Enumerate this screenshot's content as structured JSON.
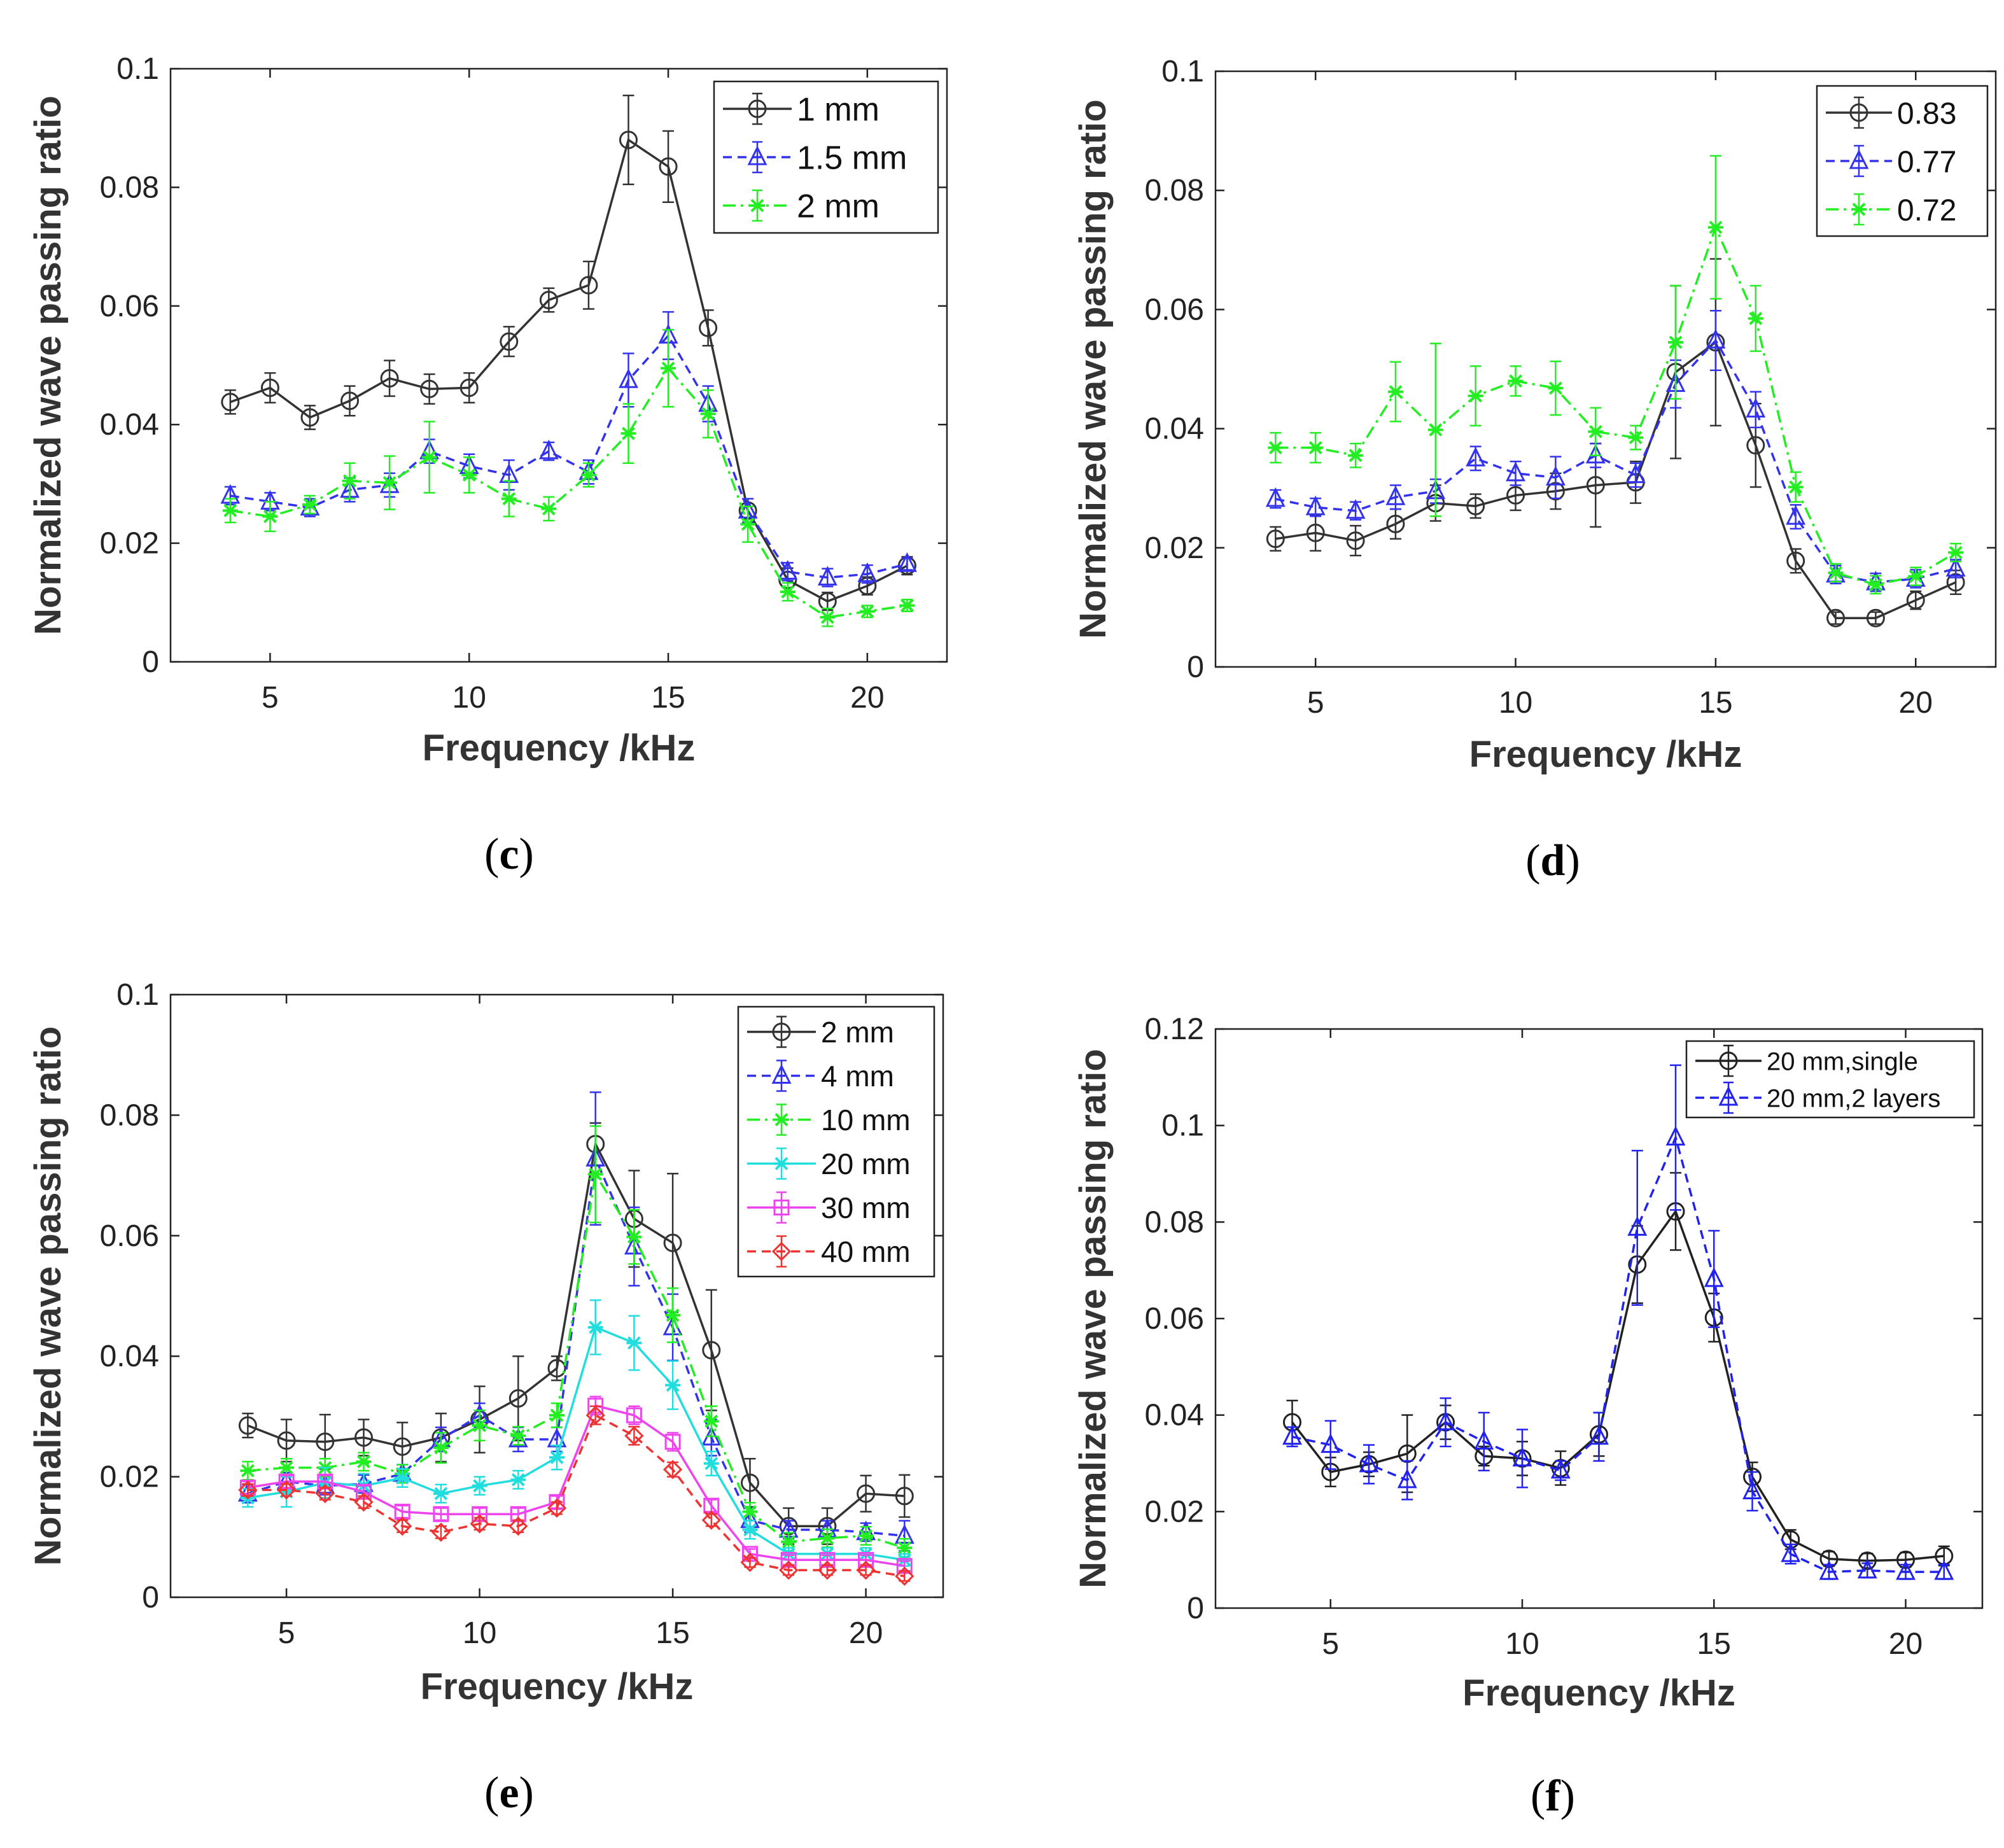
{
  "figure": {
    "panels": [
      {
        "id": "c",
        "caption_open": "(",
        "caption_letter": "c",
        "caption_close": ")"
      },
      {
        "id": "d",
        "caption_open": "(",
        "caption_letter": "d",
        "caption_close": ")"
      },
      {
        "id": "e",
        "caption_open": "(",
        "caption_letter": "e",
        "caption_close": ")"
      },
      {
        "id": "f",
        "caption_open": "(",
        "caption_letter": "f",
        "caption_close": ")"
      }
    ]
  },
  "chart_data": [
    {
      "panel": "c",
      "type": "line",
      "title": "",
      "xlabel": "Frequency /kHz",
      "ylabel": "Normalized wave passing ratio",
      "xlim": [
        2.5,
        22
      ],
      "ylim": [
        0,
        0.1
      ],
      "xticks": [
        5,
        10,
        15,
        20
      ],
      "xtick_labels": [
        "5",
        "10",
        "15",
        "20"
      ],
      "yticks": [
        0,
        0.02,
        0.04,
        0.06,
        0.08,
        0.1
      ],
      "ytick_labels": [
        "0",
        "0.02",
        "0.04",
        "0.06",
        "0.08",
        "0.1"
      ],
      "legend_position": "top-right",
      "x": [
        4,
        5,
        6,
        7,
        8,
        9,
        10,
        11,
        12,
        13,
        14,
        15,
        16,
        17,
        18,
        19,
        20,
        21
      ],
      "series": [
        {
          "name": "1 mm",
          "color": "#333333",
          "marker": "circle",
          "dash": "solid",
          "values": [
            0.0438,
            0.0462,
            0.0412,
            0.044,
            0.0478,
            0.046,
            0.0462,
            0.054,
            0.061,
            0.0635,
            0.088,
            0.0835,
            0.0563,
            0.0255,
            0.0138,
            0.0102,
            0.0128,
            0.0162
          ],
          "errors": [
            0.002,
            0.0025,
            0.002,
            0.0025,
            0.003,
            0.0025,
            0.0025,
            0.0025,
            0.002,
            0.004,
            0.0075,
            0.006,
            0.003,
            0.002,
            0.002,
            0.0015,
            0.0015,
            0.0015
          ]
        },
        {
          "name": "1.5 mm",
          "color": "#3333ee",
          "marker": "triangle",
          "dash": "dashed",
          "values": [
            0.028,
            0.027,
            0.026,
            0.029,
            0.0298,
            0.0355,
            0.033,
            0.0315,
            0.0355,
            0.032,
            0.0475,
            0.055,
            0.0435,
            0.0255,
            0.0152,
            0.0142,
            0.0148,
            0.0165
          ],
          "errors": [
            0.0015,
            0.0015,
            0.0015,
            0.002,
            0.002,
            0.002,
            0.002,
            0.0025,
            0.0015,
            0.002,
            0.0045,
            0.004,
            0.003,
            0.002,
            0.0015,
            0.0015,
            0.0015,
            0.001
          ]
        },
        {
          "name": "2 mm",
          "color": "#22ee22",
          "marker": "star",
          "dash": "dashdot",
          "values": [
            0.0255,
            0.0245,
            0.0265,
            0.0305,
            0.0302,
            0.0345,
            0.0315,
            0.0275,
            0.0258,
            0.0315,
            0.0385,
            0.0495,
            0.0418,
            0.0232,
            0.0118,
            0.0075,
            0.0085,
            0.0095
          ],
          "errors": [
            0.002,
            0.0025,
            0.0015,
            0.003,
            0.0045,
            0.006,
            0.003,
            0.003,
            0.002,
            0.002,
            0.005,
            0.0065,
            0.004,
            0.003,
            0.0015,
            0.0015,
            0.001,
            0.001
          ]
        }
      ]
    },
    {
      "panel": "d",
      "type": "line",
      "title": "",
      "xlabel": "Frequency /kHz",
      "ylabel": "Normalized wave passing ratio",
      "xlim": [
        2.5,
        22
      ],
      "ylim": [
        0,
        0.1
      ],
      "xticks": [
        5,
        10,
        15,
        20
      ],
      "xtick_labels": [
        "5",
        "10",
        "15",
        "20"
      ],
      "yticks": [
        0,
        0.02,
        0.04,
        0.06,
        0.08,
        0.1
      ],
      "ytick_labels": [
        "0",
        "0.02",
        "0.04",
        "0.06",
        "0.08",
        "0.1"
      ],
      "legend_position": "top-right",
      "x": [
        4,
        5,
        6,
        7,
        8,
        9,
        10,
        11,
        12,
        13,
        14,
        15,
        16,
        17,
        18,
        19,
        20,
        21
      ],
      "series": [
        {
          "name": "0.83",
          "color": "#333333",
          "marker": "circle",
          "dash": "solid",
          "values": [
            0.0215,
            0.0225,
            0.0212,
            0.024,
            0.0275,
            0.027,
            0.0288,
            0.0295,
            0.0305,
            0.031,
            0.0495,
            0.0545,
            0.0372,
            0.0178,
            0.0082,
            0.0082,
            0.0112,
            0.0142
          ],
          "errors": [
            0.002,
            0.003,
            0.0025,
            0.0025,
            0.003,
            0.002,
            0.0025,
            0.003,
            0.007,
            0.0035,
            0.0145,
            0.014,
            0.007,
            0.002,
            0.001,
            0.001,
            0.0015,
            0.002
          ]
        },
        {
          "name": "0.77",
          "color": "#3333ee",
          "marker": "triangle",
          "dash": "dashed",
          "values": [
            0.0282,
            0.0268,
            0.0262,
            0.0285,
            0.0295,
            0.035,
            0.0325,
            0.0318,
            0.0355,
            0.0322,
            0.0475,
            0.0548,
            0.0432,
            0.0252,
            0.0155,
            0.0142,
            0.0148,
            0.0165
          ],
          "errors": [
            0.0015,
            0.0015,
            0.0015,
            0.002,
            0.002,
            0.002,
            0.002,
            0.0035,
            0.002,
            0.002,
            0.004,
            0.005,
            0.003,
            0.002,
            0.0015,
            0.0015,
            0.0015,
            0.0015
          ]
        },
        {
          "name": "0.72",
          "color": "#22ee22",
          "marker": "star",
          "dash": "dashdot",
          "values": [
            0.0368,
            0.0368,
            0.0355,
            0.0462,
            0.0398,
            0.0455,
            0.048,
            0.0468,
            0.0395,
            0.0385,
            0.0545,
            0.0738,
            0.0585,
            0.0302,
            0.0158,
            0.0138,
            0.0152,
            0.0192
          ],
          "errors": [
            0.0025,
            0.0025,
            0.002,
            0.005,
            0.0145,
            0.005,
            0.0025,
            0.0045,
            0.004,
            0.002,
            0.0095,
            0.012,
            0.0055,
            0.0025,
            0.0015,
            0.0015,
            0.0015,
            0.0015
          ]
        }
      ]
    },
    {
      "panel": "e",
      "type": "line",
      "title": "",
      "xlabel": "Frequency /kHz",
      "ylabel": "Normalized wave passing ratio",
      "xlim": [
        2,
        22
      ],
      "ylim": [
        0,
        0.1
      ],
      "xticks": [
        5,
        10,
        15,
        20
      ],
      "xtick_labels": [
        "5",
        "10",
        "15",
        "20"
      ],
      "yticks": [
        0,
        0.02,
        0.04,
        0.06,
        0.08,
        0.1
      ],
      "ytick_labels": [
        "0",
        "0.02",
        "0.04",
        "0.06",
        "0.08",
        "0.1"
      ],
      "legend_position": "top-right",
      "x": [
        4,
        5,
        6,
        7,
        8,
        9,
        10,
        11,
        12,
        13,
        14,
        15,
        16,
        17,
        18,
        19,
        20,
        21
      ],
      "series": [
        {
          "name": "2 mm",
          "color": "#333333",
          "marker": "circle",
          "dash": "solid",
          "values": [
            0.0285,
            0.026,
            0.0258,
            0.0265,
            0.025,
            0.0265,
            0.0295,
            0.033,
            0.038,
            0.0752,
            0.0628,
            0.0588,
            0.041,
            0.019,
            0.0118,
            0.0118,
            0.0172,
            0.0168
          ],
          "errors": [
            0.002,
            0.0035,
            0.0045,
            0.003,
            0.004,
            0.004,
            0.0055,
            0.007,
            0.002,
            0.0035,
            0.008,
            0.0115,
            0.01,
            0.004,
            0.003,
            0.003,
            0.003,
            0.0035
          ]
        },
        {
          "name": "4 mm",
          "color": "#3333ee",
          "marker": "triangle",
          "dash": "dashed",
          "values": [
            0.0172,
            0.0192,
            0.0185,
            0.0188,
            0.0205,
            0.0262,
            0.0302,
            0.0262,
            0.0262,
            0.0728,
            0.0582,
            0.0448,
            0.0265,
            0.0128,
            0.0112,
            0.0112,
            0.0108,
            0.0102
          ],
          "errors": [
            0.0015,
            0.0015,
            0.0015,
            0.0015,
            0.0015,
            0.002,
            0.002,
            0.002,
            0.002,
            0.011,
            0.0065,
            0.0055,
            0.003,
            0.002,
            0.0015,
            0.0015,
            0.0015,
            0.0025
          ]
        },
        {
          "name": "10 mm",
          "color": "#22ee22",
          "marker": "star",
          "dash": "dashdot",
          "values": [
            0.021,
            0.0215,
            0.0215,
            0.0225,
            0.0205,
            0.0248,
            0.0285,
            0.0268,
            0.0302,
            0.0702,
            0.0598,
            0.0468,
            0.0292,
            0.0142,
            0.0092,
            0.0098,
            0.0102,
            0.0082
          ],
          "errors": [
            0.0015,
            0.0015,
            0.0015,
            0.0015,
            0.0015,
            0.0025,
            0.0025,
            0.0015,
            0.002,
            0.008,
            0.0045,
            0.0045,
            0.0025,
            0.0015,
            0.0015,
            0.0015,
            0.0015,
            0.0015
          ]
        },
        {
          "name": "20 mm",
          "color": "#22dddd",
          "marker": "star",
          "dash": "solid",
          "values": [
            0.0165,
            0.0175,
            0.019,
            0.0185,
            0.0198,
            0.0172,
            0.0185,
            0.0195,
            0.0232,
            0.0448,
            0.0422,
            0.0352,
            0.0222,
            0.0112,
            0.0072,
            0.0072,
            0.0072,
            0.0062
          ],
          "errors": [
            0.0015,
            0.0025,
            0.0025,
            0.002,
            0.0015,
            0.0015,
            0.0015,
            0.0015,
            0.002,
            0.0045,
            0.0045,
            0.004,
            0.002,
            0.0015,
            0.001,
            0.001,
            0.001,
            0.001
          ]
        },
        {
          "name": "30 mm",
          "color": "#ee44ee",
          "marker": "square",
          "dash": "solid",
          "values": [
            0.0182,
            0.0192,
            0.0192,
            0.0175,
            0.0142,
            0.0138,
            0.0138,
            0.0138,
            0.0158,
            0.0318,
            0.0302,
            0.0258,
            0.0152,
            0.0072,
            0.0062,
            0.0062,
            0.0062,
            0.0052
          ],
          "errors": [
            0.001,
            0.001,
            0.001,
            0.001,
            0.001,
            0.001,
            0.001,
            0.001,
            0.001,
            0.0015,
            0.0015,
            0.0015,
            0.001,
            0.0008,
            0.0008,
            0.0008,
            0.0008,
            0.0008
          ]
        },
        {
          "name": "40 mm",
          "color": "#ee3333",
          "marker": "diamond",
          "dash": "dashed",
          "values": [
            0.0178,
            0.0178,
            0.0172,
            0.0158,
            0.0118,
            0.0108,
            0.0122,
            0.0118,
            0.0148,
            0.0302,
            0.0268,
            0.0212,
            0.0128,
            0.0058,
            0.0045,
            0.0045,
            0.0045,
            0.0035
          ],
          "errors": [
            0.001,
            0.001,
            0.001,
            0.001,
            0.001,
            0.001,
            0.001,
            0.001,
            0.001,
            0.0015,
            0.0015,
            0.0012,
            0.001,
            0.0008,
            0.0008,
            0.0008,
            0.0008,
            0.0008
          ]
        }
      ]
    },
    {
      "panel": "f",
      "type": "line",
      "title": "",
      "xlabel": "Frequency /kHz",
      "ylabel": "Normalized wave passing ratio",
      "xlim": [
        2,
        22
      ],
      "ylim": [
        0,
        0.12
      ],
      "xticks": [
        5,
        10,
        15,
        20
      ],
      "xtick_labels": [
        "5",
        "10",
        "15",
        "20"
      ],
      "yticks": [
        0,
        0.02,
        0.04,
        0.06,
        0.08,
        0.1,
        0.12
      ],
      "ytick_labels": [
        "0",
        "0.02",
        "0.04",
        "0.06",
        "0.08",
        "0.1",
        "0.12"
      ],
      "legend_position": "top-right",
      "x": [
        4,
        5,
        6,
        7,
        8,
        9,
        10,
        11,
        12,
        13,
        14,
        15,
        16,
        17,
        18,
        19,
        20,
        21
      ],
      "series": [
        {
          "name": "20 mm,single",
          "color": "#222222",
          "marker": "circle",
          "dash": "solid",
          "values": [
            0.0385,
            0.0282,
            0.0298,
            0.032,
            0.0385,
            0.0315,
            0.031,
            0.029,
            0.036,
            0.0712,
            0.0822,
            0.0602,
            0.0272,
            0.0142,
            0.0102,
            0.0098,
            0.01,
            0.0108
          ],
          "errors": [
            0.0045,
            0.003,
            0.0025,
            0.008,
            0.0035,
            0.002,
            0.0035,
            0.0035,
            0.0045,
            0.008,
            0.008,
            0.005,
            0.003,
            0.002,
            0.0015,
            0.0015,
            0.0015,
            0.002
          ]
        },
        {
          "name": "20 mm,2 layers",
          "color": "#2222ee",
          "marker": "triangle",
          "dash": "dashed",
          "values": [
            0.0355,
            0.0338,
            0.0298,
            0.0265,
            0.0385,
            0.0345,
            0.031,
            0.0285,
            0.0355,
            0.0788,
            0.0975,
            0.0682,
            0.0242,
            0.0112,
            0.0075,
            0.0078,
            0.0075,
            0.0075
          ],
          "errors": [
            0.002,
            0.005,
            0.004,
            0.004,
            0.005,
            0.006,
            0.006,
            0.002,
            0.005,
            0.016,
            0.015,
            0.01,
            0.004,
            0.002,
            0.0015,
            0.0015,
            0.0015,
            0.0015
          ]
        }
      ]
    }
  ]
}
